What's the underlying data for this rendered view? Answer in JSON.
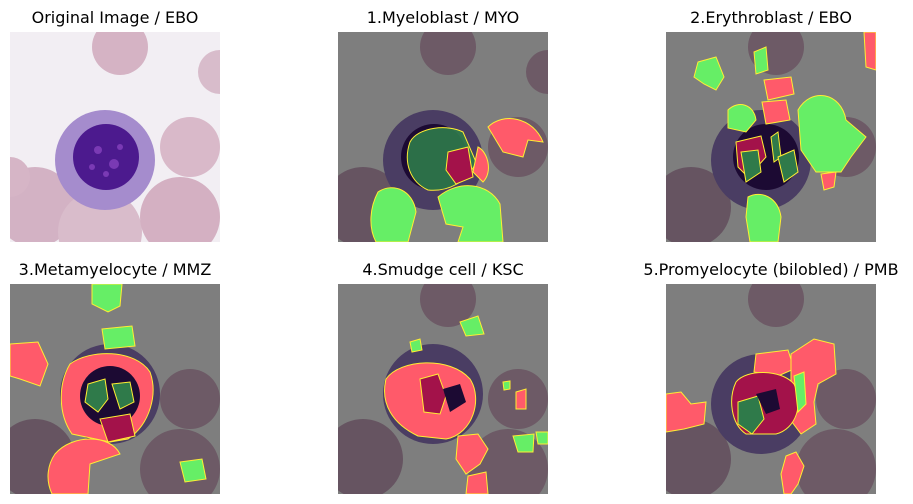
{
  "panels": [
    {
      "title": "Original Image / EBO"
    },
    {
      "title": "1.Myeloblast / MYO"
    },
    {
      "title": "2.Erythroblast / EBO"
    },
    {
      "title": "3.Metamyelocyte / MMZ"
    },
    {
      "title": "4.Smudge cell / KSC"
    },
    {
      "title": "5.Promyelocyte (bilobled) / PMB"
    }
  ],
  "colors": {
    "original_bg": "#f2eef3",
    "rbc_original": "#d9b7c8",
    "cytoplasm": "#a58ccd",
    "nucleus": "#4c1a8e",
    "gray_bg": "#7e7e7e",
    "rbc_gray": "#6d5a66",
    "cell_gray": "#4a3d63",
    "nucleus_gray": "#1c0a33",
    "overlay_green": "#66ee66",
    "overlay_red": "#ff5a6a",
    "overlay_outline": "#ffee33",
    "dark_green": "#2f7a4a",
    "dark_red": "#a3124a"
  }
}
